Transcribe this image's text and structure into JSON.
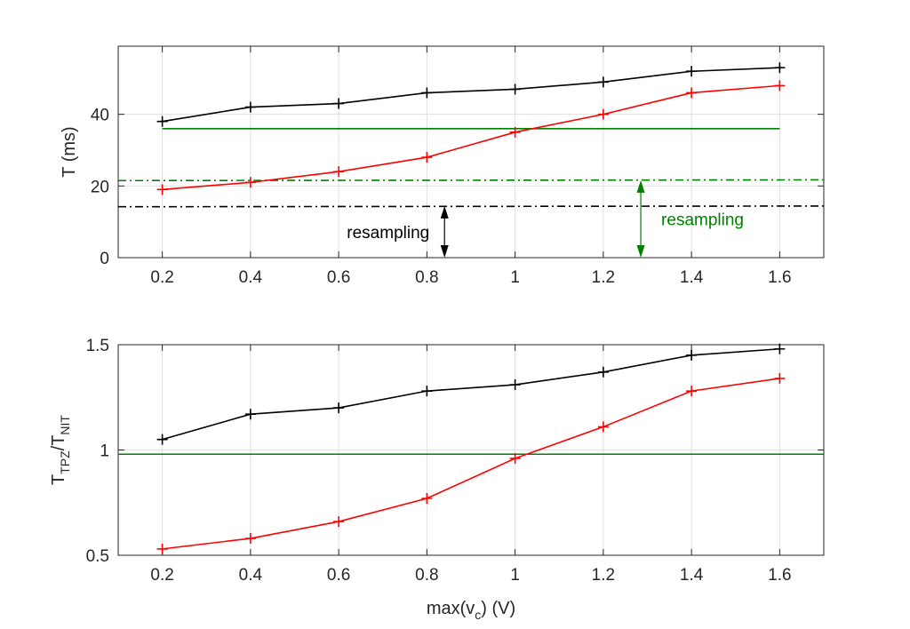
{
  "chart_data": [
    {
      "type": "line",
      "xlabel": "",
      "ylabel": "T (ms)",
      "xlim": [
        0.1,
        1.7
      ],
      "ylim": [
        0,
        59
      ],
      "xticks": [
        0.2,
        0.4,
        0.6,
        0.8,
        1,
        1.2,
        1.4,
        1.6
      ],
      "xtick_labels": [
        "0.2",
        "0.4",
        "0.6",
        "0.8",
        "1",
        "1.2",
        "1.4",
        "1.6"
      ],
      "yticks": [
        0,
        20,
        40
      ],
      "ytick_labels": [
        "0",
        "20",
        "40"
      ],
      "grid": true,
      "x": [
        0.2,
        0.4,
        0.6,
        0.8,
        1.0,
        1.2,
        1.4,
        1.6
      ],
      "series": [
        {
          "values": [
            38,
            42,
            43,
            46,
            47,
            49,
            52,
            53
          ],
          "color": "#000000",
          "marker": "+"
        },
        {
          "values": [
            19,
            21,
            24,
            28,
            35,
            40,
            46,
            48
          ],
          "color": "#ff0000",
          "marker": "+"
        }
      ],
      "reference_lines": [
        {
          "color": "#008000",
          "style": "solid",
          "x": [
            0.2,
            1.6
          ],
          "y": [
            36,
            36
          ]
        },
        {
          "color": "#008000",
          "style": "dashdot",
          "x": [
            0.1,
            1.7
          ],
          "y": [
            21.5,
            21.7
          ]
        },
        {
          "color": "#000000",
          "style": "dashdot",
          "x": [
            0.1,
            1.7
          ],
          "y": [
            14.2,
            14.4
          ]
        }
      ],
      "annotations": [
        {
          "text": "resampling",
          "color": "#000000",
          "arrow_x": 0.84,
          "arrow_y": [
            14.4,
            0
          ]
        },
        {
          "text": "resampling",
          "color": "#008000",
          "arrow_x": 1.285,
          "arrow_y": [
            21.6,
            0
          ]
        }
      ]
    },
    {
      "type": "line",
      "xlabel": "max(v_c) (V)",
      "xlabel_parts": {
        "main": "max(v",
        "sub": "c",
        "after": ") (V)"
      },
      "ylabel": "T_TPZ/T_NIT",
      "ylabel_parts": {
        "t1": "T",
        "s1": "TPZ",
        "slash": "/T",
        "s2": "NIT"
      },
      "xlim": [
        0.1,
        1.7
      ],
      "ylim": [
        0.5,
        1.5
      ],
      "xticks": [
        0.2,
        0.4,
        0.6,
        0.8,
        1,
        1.2,
        1.4,
        1.6
      ],
      "xtick_labels": [
        "0.2",
        "0.4",
        "0.6",
        "0.8",
        "1",
        "1.2",
        "1.4",
        "1.6"
      ],
      "yticks": [
        0.5,
        1,
        1.5
      ],
      "ytick_labels": [
        "0.5",
        "1",
        "1.5"
      ],
      "grid": true,
      "x": [
        0.2,
        0.4,
        0.6,
        0.8,
        1.0,
        1.2,
        1.4,
        1.6
      ],
      "series": [
        {
          "values": [
            1.05,
            1.17,
            1.2,
            1.28,
            1.31,
            1.37,
            1.45,
            1.48
          ],
          "color": "#000000",
          "marker": "+"
        },
        {
          "values": [
            0.53,
            0.58,
            0.66,
            0.77,
            0.96,
            1.11,
            1.28,
            1.34
          ],
          "color": "#ff0000",
          "marker": "+"
        }
      ],
      "reference_lines": [
        {
          "color": "#008000",
          "style": "solid",
          "x": [
            0.1,
            1.7
          ],
          "y": [
            0.98,
            0.98
          ]
        }
      ],
      "annotations": []
    }
  ]
}
